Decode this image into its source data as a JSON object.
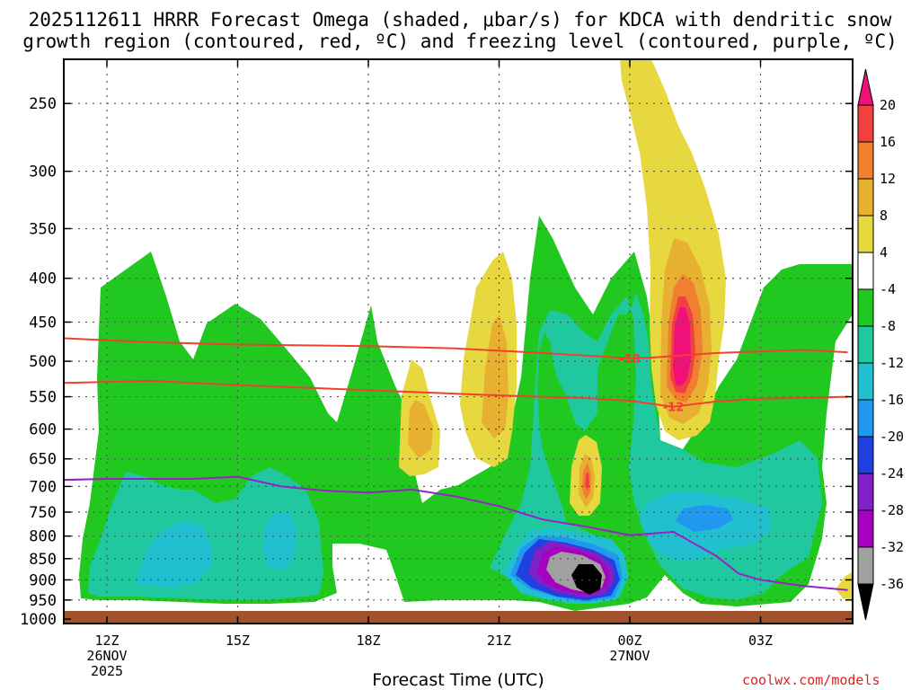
{
  "title_line1": "2025112611 HRRR Forecast Omega (shaded, μbar/s) for KDCA with dendritic snow",
  "title_line2": "growth region (contoured, red, ºC) and freezing level (contoured, purple, ºC)",
  "credit": "coolwx.com/models",
  "chart_data": {
    "type": "heatmap",
    "title": "2025112611 HRRR Forecast Omega (shaded, μbar/s) for KDCA with dendritic snow growth region (contoured, red, ºC) and freezing level (contoured, purple, ºC)",
    "xlabel": "Forecast Time (UTC)",
    "ylabel": "",
    "y_axis": "pressure (hPa), inverted",
    "x_ticks": [
      {
        "hour": 12,
        "label": "12Z",
        "sub1": "26NOV",
        "sub2": "2025"
      },
      {
        "hour": 15,
        "label": "15Z",
        "sub1": "",
        "sub2": ""
      },
      {
        "hour": 18,
        "label": "18Z",
        "sub1": "",
        "sub2": ""
      },
      {
        "hour": 21,
        "label": "21Z",
        "sub1": "",
        "sub2": ""
      },
      {
        "hour": 24,
        "label": "00Z",
        "sub1": "27NOV",
        "sub2": ""
      },
      {
        "hour": 27,
        "label": "03Z",
        "sub1": "",
        "sub2": ""
      }
    ],
    "y_ticks": [
      250,
      300,
      350,
      400,
      450,
      500,
      550,
      600,
      650,
      700,
      750,
      800,
      850,
      900,
      950,
      1000
    ],
    "colorbar": {
      "levels": [
        20,
        16,
        12,
        8,
        4,
        -4,
        -8,
        -12,
        -16,
        -20,
        -24,
        -28,
        -32,
        -36
      ],
      "colors": [
        "#f0107a",
        "#f04040",
        "#f08030",
        "#e8b030",
        "#e8d840",
        "#ffffff",
        "#20c820",
        "#20c8a0",
        "#20c0d0",
        "#2098f0",
        "#2040e0",
        "#8020c8",
        "#a800c0",
        "#a0a0a0",
        "#000000"
      ]
    },
    "contours": [
      {
        "name": "-18",
        "color": "#f04030",
        "points": [
          [
            11,
            470
          ],
          [
            13,
            475
          ],
          [
            15,
            478
          ],
          [
            18,
            480
          ],
          [
            20,
            483
          ],
          [
            22,
            489
          ],
          [
            24,
            496
          ],
          [
            24.5,
            495
          ],
          [
            26,
            489
          ],
          [
            28,
            485
          ],
          [
            29,
            488
          ]
        ]
      },
      {
        "name": "-12",
        "color": "#f04030",
        "points": [
          [
            11,
            530
          ],
          [
            13,
            527
          ],
          [
            15,
            533
          ],
          [
            17,
            538
          ],
          [
            19,
            543
          ],
          [
            21,
            548
          ],
          [
            23,
            552
          ],
          [
            24,
            556
          ],
          [
            25,
            565
          ],
          [
            26,
            557
          ],
          [
            27,
            553
          ],
          [
            29,
            550
          ]
        ]
      },
      {
        "name": "",
        "color": "#9a20c8",
        "points": [
          [
            11,
            688
          ],
          [
            12,
            686
          ],
          [
            14,
            686
          ],
          [
            15,
            682
          ],
          [
            16,
            700
          ],
          [
            17,
            708
          ],
          [
            18,
            712
          ],
          [
            19,
            706
          ],
          [
            20,
            719
          ],
          [
            21,
            738
          ],
          [
            22,
            765
          ],
          [
            23,
            780
          ],
          [
            24,
            798
          ],
          [
            25,
            791
          ],
          [
            26,
            845
          ],
          [
            26.5,
            885
          ],
          [
            27,
            900
          ],
          [
            28,
            915
          ],
          [
            29,
            925
          ]
        ]
      }
    ],
    "ground_color": "#a0522d"
  }
}
